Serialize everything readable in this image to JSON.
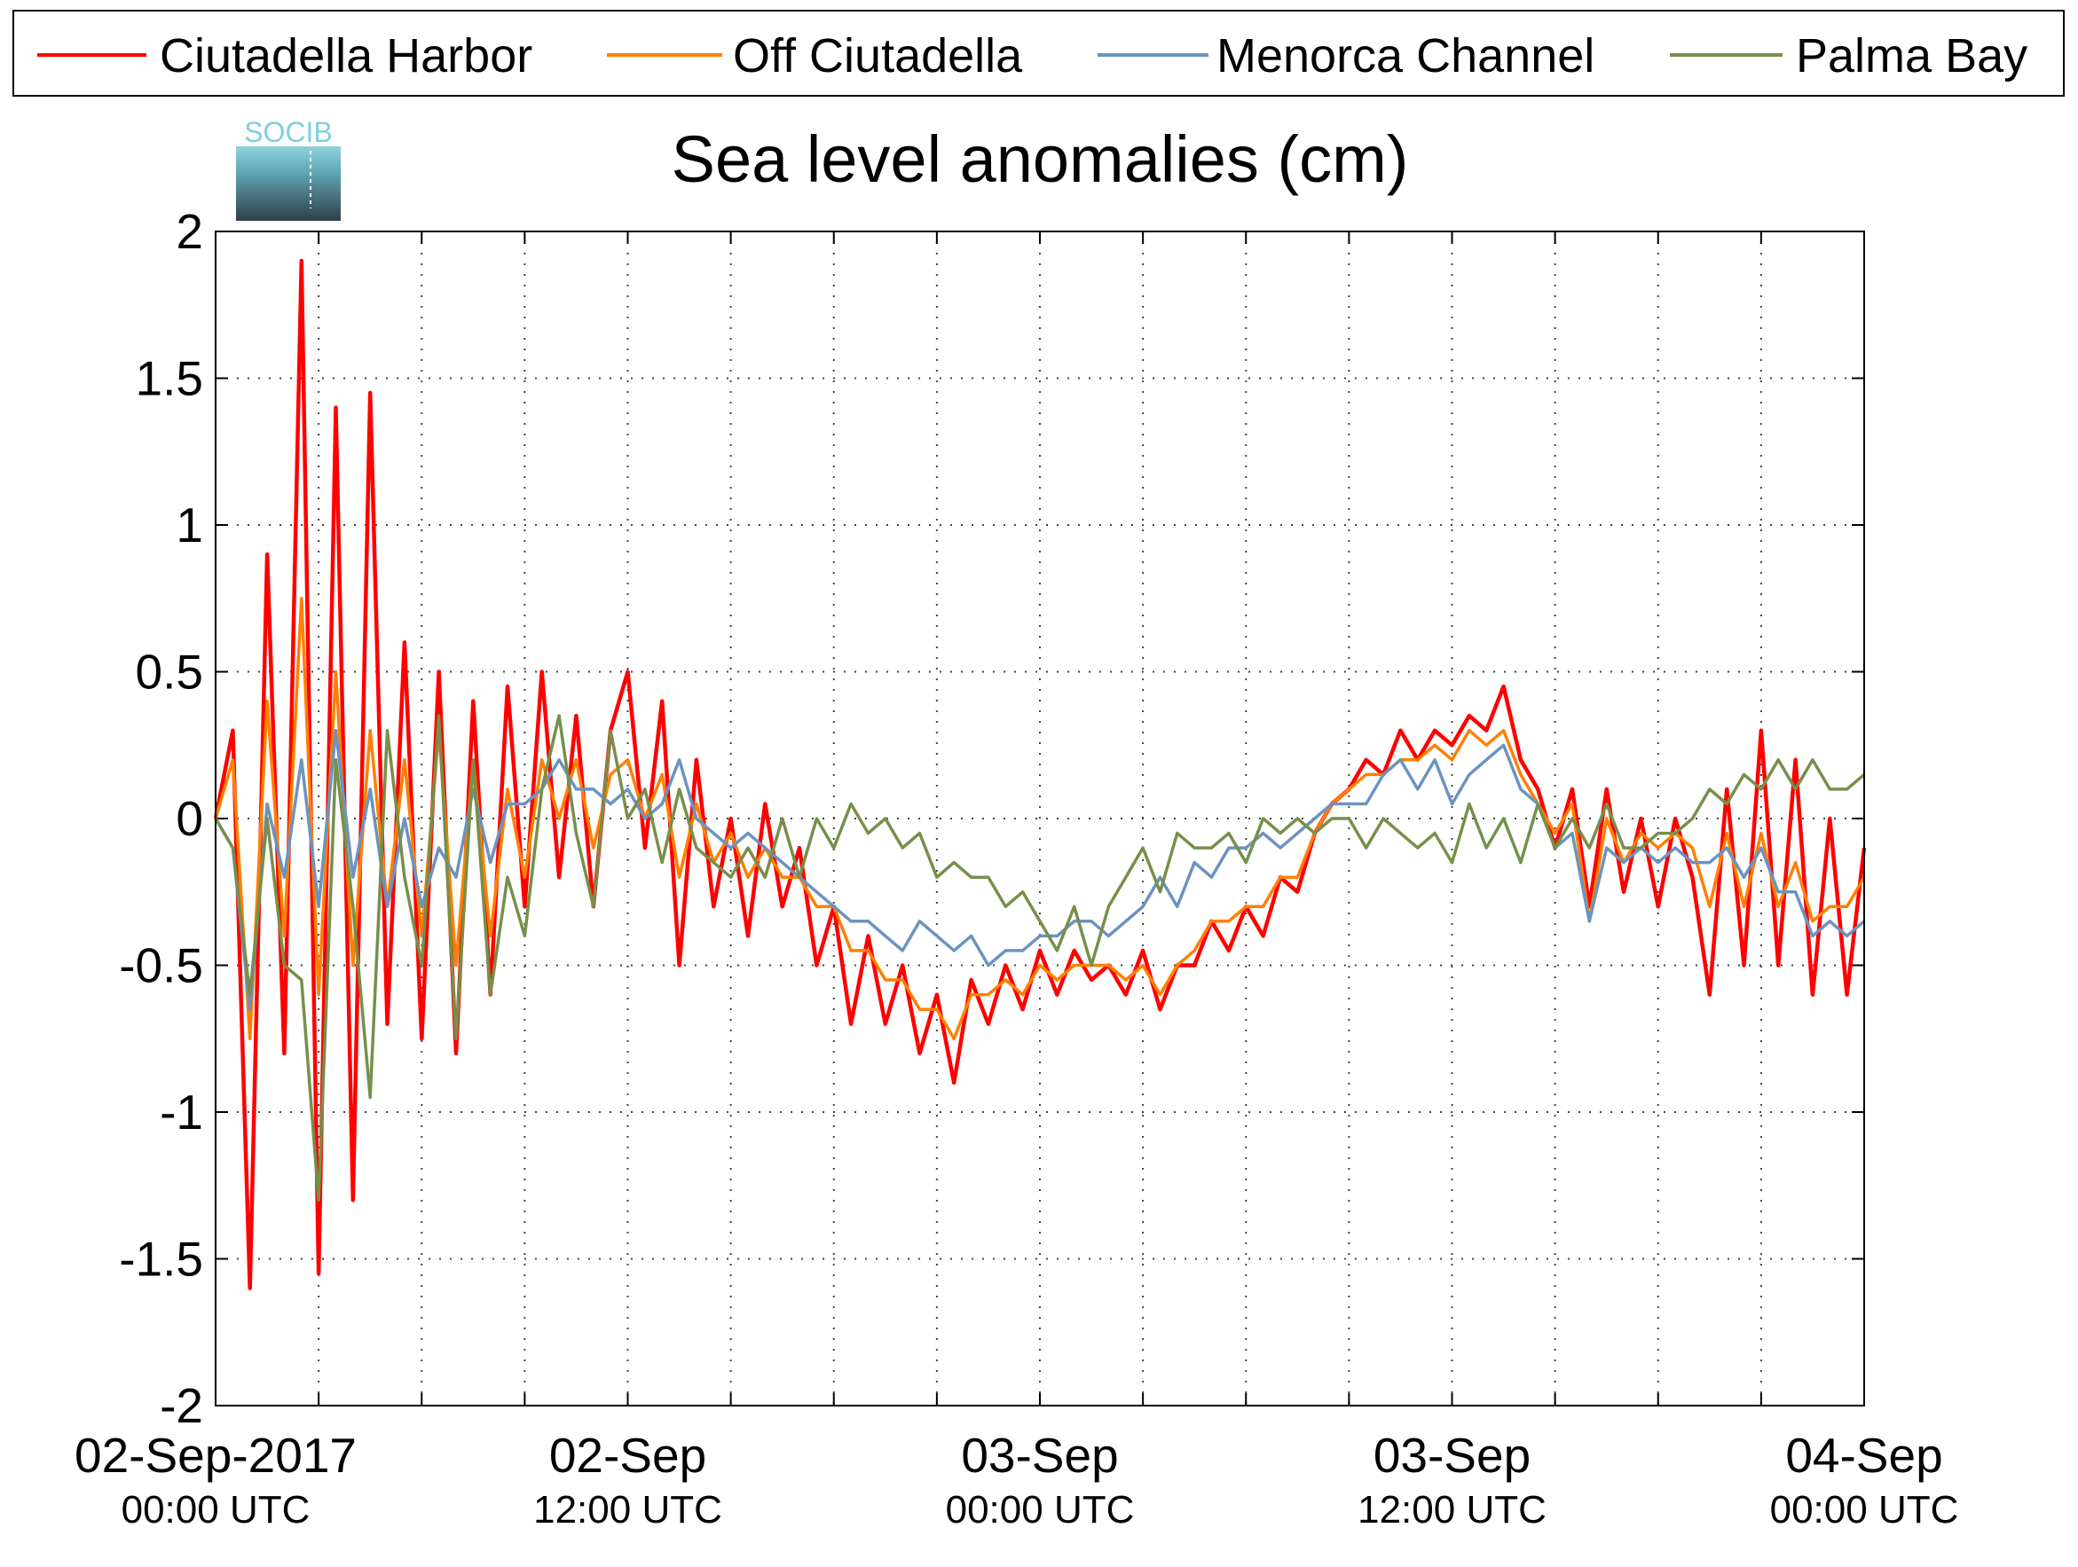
{
  "chart_data": {
    "type": "line",
    "title": "Sea level anomalies (cm)",
    "logo_text": "SOCIB",
    "xlim": [
      0,
      48
    ],
    "xticks": [
      {
        "value": 0,
        "label": "02-Sep-2017",
        "sublabel": "00:00 UTC"
      },
      {
        "value": 3,
        "label": null
      },
      {
        "value": 6,
        "label": null
      },
      {
        "value": 9,
        "label": null
      },
      {
        "value": 12,
        "label": "02-Sep",
        "sublabel": "12:00 UTC"
      },
      {
        "value": 15,
        "label": null
      },
      {
        "value": 18,
        "label": null
      },
      {
        "value": 21,
        "label": null
      },
      {
        "value": 24,
        "label": "03-Sep",
        "sublabel": "00:00 UTC"
      },
      {
        "value": 27,
        "label": null
      },
      {
        "value": 30,
        "label": null
      },
      {
        "value": 33,
        "label": null
      },
      {
        "value": 36,
        "label": "03-Sep",
        "sublabel": "12:00 UTC"
      },
      {
        "value": 39,
        "label": null
      },
      {
        "value": 42,
        "label": null
      },
      {
        "value": 45,
        "label": null
      },
      {
        "value": 48,
        "label": "04-Sep",
        "sublabel": "00:00 UTC"
      }
    ],
    "ylim": [
      -2,
      2
    ],
    "yticks": [
      -2,
      -1.5,
      -1,
      -0.5,
      0,
      0.5,
      1,
      1.5,
      2
    ],
    "grid": true,
    "legend": "top",
    "x": [
      0,
      0.5,
      1,
      1.5,
      2,
      2.5,
      3,
      3.5,
      4,
      4.5,
      5,
      5.5,
      6,
      6.5,
      7,
      7.5,
      8,
      8.5,
      9,
      9.5,
      10,
      10.5,
      11,
      11.5,
      12,
      12.5,
      13,
      13.5,
      14,
      14.5,
      15,
      15.5,
      16,
      16.5,
      17,
      17.5,
      18,
      18.5,
      19,
      19.5,
      20,
      20.5,
      21,
      21.5,
      22,
      22.5,
      23,
      23.5,
      24,
      24.5,
      25,
      25.5,
      26,
      26.5,
      27,
      27.5,
      28,
      28.5,
      29,
      29.5,
      30,
      30.5,
      31,
      31.5,
      32,
      32.5,
      33,
      33.5,
      34,
      34.5,
      35,
      35.5,
      36,
      36.5,
      37,
      37.5,
      38,
      38.5,
      39,
      39.5,
      40,
      40.5,
      41,
      41.5,
      42,
      42.5,
      43,
      43.5,
      44,
      44.5,
      45,
      45.5,
      46,
      46.5,
      47,
      47.5,
      48
    ],
    "series": [
      {
        "name": "Ciutadella Harbor",
        "color": "#ff0000",
        "values": [
          0,
          0.3,
          -1.6,
          0.9,
          -0.8,
          1.9,
          -1.55,
          1.4,
          -1.3,
          1.45,
          -0.7,
          0.6,
          -0.75,
          0.5,
          -0.8,
          0.4,
          -0.6,
          0.45,
          -0.3,
          0.5,
          -0.2,
          0.35,
          -0.3,
          0.3,
          0.5,
          -0.1,
          0.4,
          -0.5,
          0.2,
          -0.3,
          0.0,
          -0.4,
          0.05,
          -0.3,
          -0.1,
          -0.5,
          -0.3,
          -0.7,
          -0.4,
          -0.7,
          -0.5,
          -0.8,
          -0.6,
          -0.9,
          -0.55,
          -0.7,
          -0.5,
          -0.65,
          -0.45,
          -0.6,
          -0.45,
          -0.55,
          -0.5,
          -0.6,
          -0.45,
          -0.65,
          -0.5,
          -0.5,
          -0.35,
          -0.45,
          -0.3,
          -0.4,
          -0.2,
          -0.25,
          -0.05,
          0.05,
          0.1,
          0.2,
          0.15,
          0.3,
          0.2,
          0.3,
          0.25,
          0.35,
          0.3,
          0.45,
          0.2,
          0.1,
          -0.1,
          0.1,
          -0.3,
          0.1,
          -0.25,
          0.0,
          -0.3,
          0.0,
          -0.2,
          -0.6,
          0.1,
          -0.5,
          0.3,
          -0.5,
          0.2,
          -0.6,
          0.0,
          -0.6,
          -0.1
        ]
      },
      {
        "name": "Off Ciutadella",
        "color": "#ff8000",
        "values": [
          0,
          0.2,
          -0.75,
          0.4,
          -0.4,
          0.75,
          -0.6,
          0.5,
          -0.5,
          0.3,
          -0.3,
          0.2,
          -0.4,
          0.3,
          -0.5,
          0.2,
          -0.4,
          0.1,
          -0.2,
          0.2,
          0.0,
          0.2,
          -0.1,
          0.15,
          0.2,
          0.0,
          0.15,
          -0.2,
          0.05,
          -0.15,
          -0.05,
          -0.2,
          -0.1,
          -0.2,
          -0.2,
          -0.3,
          -0.3,
          -0.45,
          -0.45,
          -0.55,
          -0.55,
          -0.65,
          -0.65,
          -0.75,
          -0.6,
          -0.6,
          -0.55,
          -0.6,
          -0.5,
          -0.55,
          -0.5,
          -0.5,
          -0.5,
          -0.55,
          -0.5,
          -0.6,
          -0.5,
          -0.45,
          -0.35,
          -0.35,
          -0.3,
          -0.3,
          -0.2,
          -0.2,
          -0.05,
          0.05,
          0.1,
          0.15,
          0.15,
          0.2,
          0.2,
          0.25,
          0.2,
          0.3,
          0.25,
          0.3,
          0.15,
          0.05,
          -0.05,
          0.05,
          -0.35,
          0.0,
          -0.15,
          -0.05,
          -0.1,
          -0.05,
          -0.1,
          -0.3,
          -0.05,
          -0.3,
          -0.05,
          -0.3,
          -0.15,
          -0.35,
          -0.3,
          -0.3,
          -0.2
        ]
      },
      {
        "name": "Menorca Channel",
        "color": "#6b93c0",
        "values": [
          0,
          -0.1,
          -0.65,
          0.05,
          -0.2,
          0.2,
          -0.3,
          0.3,
          -0.2,
          0.1,
          -0.3,
          0.0,
          -0.3,
          -0.1,
          -0.2,
          0.1,
          -0.15,
          0.05,
          0.05,
          0.1,
          0.2,
          0.1,
          0.1,
          0.05,
          0.1,
          0.0,
          0.05,
          0.2,
          0.0,
          -0.05,
          -0.1,
          -0.05,
          -0.1,
          -0.15,
          -0.2,
          -0.25,
          -0.3,
          -0.35,
          -0.35,
          -0.4,
          -0.45,
          -0.35,
          -0.4,
          -0.45,
          -0.4,
          -0.5,
          -0.45,
          -0.45,
          -0.4,
          -0.4,
          -0.35,
          -0.35,
          -0.4,
          -0.35,
          -0.3,
          -0.2,
          -0.3,
          -0.15,
          -0.2,
          -0.1,
          -0.1,
          -0.05,
          -0.1,
          -0.05,
          0.0,
          0.05,
          0.05,
          0.05,
          0.15,
          0.2,
          0.1,
          0.2,
          0.05,
          0.15,
          0.2,
          0.25,
          0.1,
          0.05,
          -0.1,
          -0.05,
          -0.35,
          -0.1,
          -0.15,
          -0.1,
          -0.15,
          -0.1,
          -0.15,
          -0.15,
          -0.1,
          -0.2,
          -0.1,
          -0.25,
          -0.25,
          -0.4,
          -0.35,
          -0.4,
          -0.35
        ]
      },
      {
        "name": "Palma Bay",
        "color": "#778f4a",
        "values": [
          0,
          -0.1,
          -0.6,
          0.0,
          -0.5,
          -0.55,
          -1.3,
          0.2,
          -0.3,
          -0.95,
          0.3,
          -0.2,
          -0.5,
          0.35,
          -0.75,
          0.2,
          -0.6,
          -0.2,
          -0.4,
          0.1,
          0.35,
          -0.05,
          -0.3,
          0.3,
          0.0,
          0.1,
          -0.15,
          0.1,
          -0.1,
          -0.15,
          -0.2,
          -0.1,
          -0.2,
          0.0,
          -0.2,
          0.0,
          -0.1,
          0.05,
          -0.05,
          0.0,
          -0.1,
          -0.05,
          -0.2,
          -0.15,
          -0.2,
          -0.2,
          -0.3,
          -0.25,
          -0.35,
          -0.45,
          -0.3,
          -0.5,
          -0.3,
          -0.2,
          -0.1,
          -0.25,
          -0.05,
          -0.1,
          -0.1,
          -0.05,
          -0.15,
          0.0,
          -0.05,
          0.0,
          -0.05,
          0.0,
          0.0,
          -0.1,
          0.0,
          -0.05,
          -0.1,
          -0.05,
          -0.15,
          0.05,
          -0.1,
          0.0,
          -0.15,
          0.05,
          -0.1,
          0.0,
          -0.1,
          0.05,
          -0.1,
          -0.1,
          -0.05,
          -0.05,
          0.0,
          0.1,
          0.05,
          0.15,
          0.1,
          0.2,
          0.1,
          0.2,
          0.1,
          0.1,
          0.15
        ]
      }
    ]
  }
}
